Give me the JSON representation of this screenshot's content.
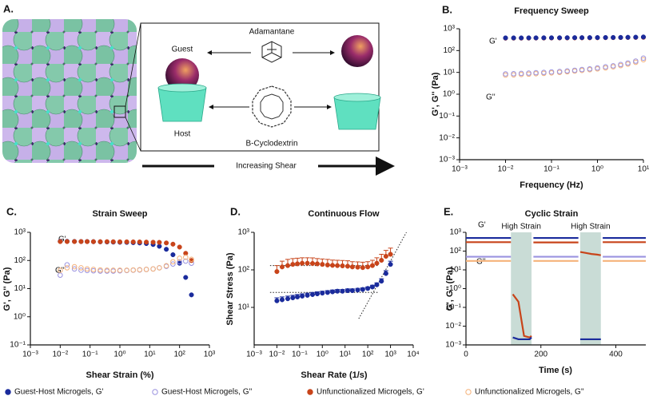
{
  "diagram": {
    "panel_label": "A.",
    "top_label": "Adamantane",
    "guest_label": "Guest",
    "host_label": "Host",
    "bottom_label": "B-Cyclodextrin",
    "arrow_label": "Increasing Shear"
  },
  "chart_data": [
    {
      "type": "scatter",
      "panel_label": "B.",
      "title": "Frequency Sweep",
      "x_label": "Frequency (Hz)",
      "y_label": "G', G'' (Pa)",
      "annotations": [
        "G'",
        "G''"
      ],
      "xlog": true,
      "ylog": true,
      "xlim": [
        0.001,
        10
      ],
      "ylim": [
        0.001,
        1000
      ],
      "xticks": [
        {
          "value": 0.001,
          "label": "10⁻³"
        },
        {
          "value": 0.01,
          "label": "10⁻²"
        },
        {
          "value": 0.1,
          "label": "10⁻¹"
        },
        {
          "value": 1,
          "label": "10⁰"
        },
        {
          "value": 10,
          "label": "10¹"
        }
      ],
      "yticks": [
        {
          "value": 0.001,
          "label": "10⁻³"
        },
        {
          "value": 0.01,
          "label": "10⁻²"
        },
        {
          "value": 0.1,
          "label": "10⁻¹"
        },
        {
          "value": 1,
          "label": "10⁰"
        },
        {
          "value": 10,
          "label": "10¹"
        },
        {
          "value": 100,
          "label": "10²"
        },
        {
          "value": 1000,
          "label": "10³"
        }
      ],
      "x": [
        0.01,
        0.015,
        0.022,
        0.032,
        0.046,
        0.068,
        0.1,
        0.15,
        0.22,
        0.32,
        0.46,
        0.68,
        1,
        1.5,
        2.2,
        3.2,
        4.6,
        6.8,
        10
      ],
      "series": [
        {
          "color": "#c8441a",
          "marker": "filled",
          "values": [
            370,
            372,
            372,
            374,
            375,
            376,
            378,
            380,
            380,
            382,
            384,
            385,
            387,
            390,
            392,
            395,
            398,
            400,
            405
          ]
        },
        {
          "color": "#1a2b9c",
          "marker": "filled",
          "values": [
            380,
            380,
            380,
            382,
            382,
            384,
            385,
            386,
            388,
            390,
            390,
            392,
            394,
            396,
            398,
            400,
            405,
            410,
            420
          ]
        },
        {
          "color": "#f5b27a",
          "marker": "open",
          "values": [
            7.5,
            7.7,
            8,
            8.3,
            8.7,
            9,
            9.5,
            10,
            10.7,
            11.5,
            12.3,
            13.3,
            14.5,
            16,
            18,
            20.5,
            24,
            29,
            38
          ]
        },
        {
          "color": "#9b93e0",
          "marker": "open",
          "values": [
            8.5,
            8.7,
            9,
            9.3,
            9.7,
            10,
            10.5,
            11,
            11.7,
            12.5,
            13.5,
            14.5,
            16,
            18,
            20,
            23,
            27,
            33,
            45
          ]
        }
      ]
    },
    {
      "type": "scatter",
      "panel_label": "C.",
      "title": "Strain Sweep",
      "x_label": "Shear Strain (%)",
      "y_label": "G', G'' (Pa)",
      "annotations": [
        "G'",
        "G''"
      ],
      "xlog": true,
      "ylog": true,
      "xlim": [
        0.001,
        1000
      ],
      "ylim": [
        0.1,
        1000
      ],
      "xticks": [
        {
          "value": 0.001,
          "label": "10⁻³"
        },
        {
          "value": 0.01,
          "label": "10⁻²"
        },
        {
          "value": 0.1,
          "label": "10⁻¹"
        },
        {
          "value": 1,
          "label": "10⁰"
        },
        {
          "value": 10,
          "label": "10¹"
        },
        {
          "value": 100,
          "label": "10²"
        },
        {
          "value": 1000,
          "label": "10³"
        }
      ],
      "yticks": [
        {
          "value": 0.1,
          "label": "10⁻¹"
        },
        {
          "value": 1,
          "label": "10⁰"
        },
        {
          "value": 10,
          "label": "10¹"
        },
        {
          "value": 100,
          "label": "10²"
        },
        {
          "value": 1000,
          "label": "10³"
        }
      ],
      "x": [
        0.01,
        0.017,
        0.03,
        0.05,
        0.08,
        0.13,
        0.22,
        0.37,
        0.6,
        1,
        1.7,
        2.8,
        4.6,
        7.7,
        13,
        21,
        36,
        60,
        100,
        160,
        250
      ],
      "series": [
        {
          "name": "Guest-Host Microgels, G'",
          "color": "#1a2b9c",
          "marker": "filled",
          "values": [
            480,
            480,
            475,
            470,
            470,
            465,
            460,
            455,
            450,
            445,
            440,
            430,
            420,
            400,
            370,
            320,
            250,
            160,
            80,
            25,
            6
          ]
        },
        {
          "name": "Guest-Host Microgels, G''",
          "color": "#9b93e0",
          "marker": "open",
          "values": [
            30,
            70,
            50,
            45,
            44,
            43,
            42,
            42,
            42,
            43,
            44,
            45,
            46,
            48,
            50,
            55,
            62,
            75,
            90,
            95,
            80
          ]
        },
        {
          "name": "Unfunctionalized Microgels, G'",
          "color": "#c8441a",
          "marker": "filled",
          "values": [
            470,
            470,
            470,
            470,
            468,
            466,
            465,
            465,
            463,
            460,
            460,
            458,
            455,
            450,
            445,
            440,
            420,
            380,
            300,
            180,
            100
          ]
        },
        {
          "name": "Unfunctionalized Microgels, G''",
          "color": "#f5b27a",
          "marker": "open",
          "values": [
            45,
            55,
            60,
            55,
            50,
            48,
            46,
            45,
            45,
            45,
            45,
            46,
            47,
            48,
            50,
            55,
            65,
            90,
            120,
            130,
            110
          ]
        }
      ]
    },
    {
      "type": "scatter",
      "panel_label": "D.",
      "title": "Continuous Flow",
      "x_label": "Shear Rate (1/s)",
      "y_label": "Shear Stress (Pa)",
      "xlog": true,
      "ylog": true,
      "xlim": [
        0.001,
        10000
      ],
      "ylim": [
        1,
        1000
      ],
      "xticks": [
        {
          "value": 0.001,
          "label": "10⁻³"
        },
        {
          "value": 0.01,
          "label": "10⁻²"
        },
        {
          "value": 0.1,
          "label": "10⁻¹"
        },
        {
          "value": 1,
          "label": "10⁰"
        },
        {
          "value": 10,
          "label": "10¹"
        },
        {
          "value": 100,
          "label": "10²"
        },
        {
          "value": 1000,
          "label": "10³"
        },
        {
          "value": 10000,
          "label": "10⁴"
        }
      ],
      "yticks": [
        {
          "value": 10,
          "label": "10¹"
        },
        {
          "value": 100,
          "label": "10²"
        },
        {
          "value": 1000,
          "label": "10³"
        }
      ],
      "fit_lines": [
        {
          "x": [
            0.005,
            300
          ],
          "y": [
            130,
            130
          ]
        },
        {
          "x": [
            0.005,
            300
          ],
          "y": [
            25,
            25
          ]
        },
        {
          "x": [
            40,
            5000
          ],
          "y": [
            5,
            1000
          ]
        }
      ],
      "x": [
        0.01,
        0.017,
        0.03,
        0.05,
        0.08,
        0.13,
        0.22,
        0.37,
        0.6,
        1,
        1.7,
        2.8,
        4.6,
        7.7,
        13,
        21,
        36,
        60,
        100,
        160,
        250,
        400,
        630,
        1000
      ],
      "series": [
        {
          "color": "#c8441a",
          "marker": "filled",
          "values": [
            90,
            120,
            130,
            140,
            145,
            150,
            150,
            148,
            145,
            140,
            135,
            132,
            130,
            128,
            125,
            120,
            118,
            115,
            120,
            130,
            150,
            180,
            230,
            260
          ],
          "errors": [
            40,
            50,
            60,
            60,
            60,
            60,
            60,
            60,
            55,
            55,
            55,
            50,
            50,
            50,
            50,
            45,
            45,
            45,
            45,
            50,
            60,
            80,
            100,
            120
          ]
        },
        {
          "color": "#1a2b9c",
          "marker": "filled",
          "values": [
            15,
            16,
            17,
            18,
            19,
            20,
            21,
            22,
            23,
            24,
            25,
            26,
            27,
            27,
            28,
            28,
            29,
            30,
            32,
            35,
            40,
            50,
            80,
            140
          ],
          "errors": [
            3,
            3,
            3,
            3,
            3,
            3,
            3,
            3,
            3,
            3,
            3,
            3,
            3,
            3,
            3,
            3,
            3,
            3,
            3,
            4,
            5,
            8,
            15,
            30
          ]
        }
      ]
    },
    {
      "type": "line",
      "panel_label": "E.",
      "title": "Cyclic Strain",
      "x_label": "Time (s)",
      "y_label": "G', G'' (Pa)",
      "annotations": [
        "G'",
        "G''"
      ],
      "xlog": false,
      "ylog": true,
      "xlim": [
        0,
        480
      ],
      "ylim": [
        0.001,
        1000
      ],
      "xticks": [
        0,
        200,
        400
      ],
      "yticks": [
        {
          "value": 0.001,
          "label": "10⁻³"
        },
        {
          "value": 0.01,
          "label": "10⁻²"
        },
        {
          "value": 0.1,
          "label": "10⁻¹"
        },
        {
          "value": 1,
          "label": "10⁰"
        },
        {
          "value": 10,
          "label": "10¹"
        },
        {
          "value": 100,
          "label": "10²"
        },
        {
          "value": 1000,
          "label": "10³"
        }
      ],
      "shaded_regions": [
        {
          "x": [
            120,
            175
          ],
          "label": "High Strain"
        },
        {
          "x": [
            305,
            360
          ],
          "label": "High Strain"
        }
      ],
      "x": [
        0,
        30,
        60,
        90,
        120,
        122.5,
        125,
        140,
        155,
        170,
        175,
        177.5,
        180,
        210,
        240,
        270,
        300,
        302.5,
        305,
        320,
        335,
        350,
        360,
        362.5,
        365,
        400,
        440,
        480
      ],
      "series": [
        {
          "color": "#f5b27a",
          "values": [
            30,
            30,
            30,
            30,
            30,
            null,
            null,
            null,
            null,
            null,
            null,
            null,
            30,
            30,
            30,
            30,
            30,
            null,
            null,
            null,
            null,
            null,
            null,
            null,
            30,
            30,
            30,
            30
          ]
        },
        {
          "color": "#9b93e0",
          "values": [
            50,
            50,
            50,
            50,
            50,
            null,
            null,
            null,
            null,
            null,
            null,
            null,
            50,
            50,
            50,
            50,
            50,
            null,
            null,
            null,
            null,
            null,
            null,
            null,
            50,
            50,
            50,
            50
          ]
        },
        {
          "color": "#c8441a",
          "values": [
            300,
            300,
            300,
            300,
            300,
            null,
            0.5,
            0.2,
            0.003,
            0.0025,
            0.003,
            null,
            290,
            290,
            290,
            290,
            290,
            null,
            90,
            80,
            70,
            65,
            60,
            null,
            300,
            300,
            300,
            300
          ]
        },
        {
          "color": "#1a2b9c",
          "values": [
            500,
            500,
            500,
            500,
            500,
            null,
            0.0025,
            0.002,
            0.002,
            0.002,
            0.0025,
            null,
            500,
            500,
            500,
            500,
            500,
            null,
            0.002,
            0.002,
            0.002,
            0.002,
            0.002,
            null,
            500,
            500,
            500,
            500
          ]
        }
      ]
    }
  ]
}
